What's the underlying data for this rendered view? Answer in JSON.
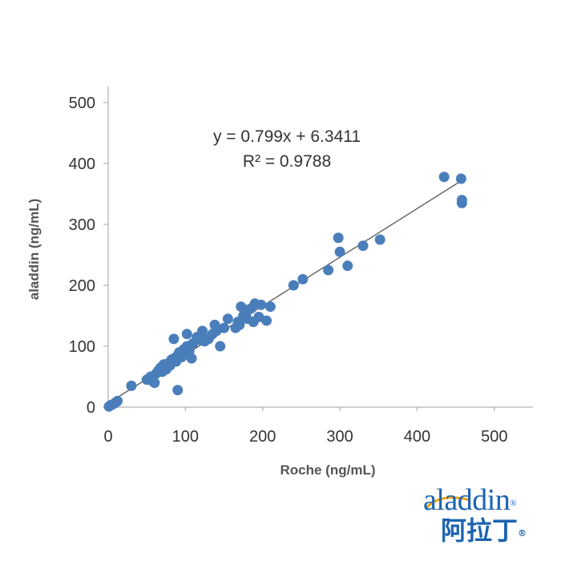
{
  "chart_data": {
    "type": "scatter",
    "xlabel": "Roche (ng/mL)",
    "ylabel": "aladdin (ng/mL)",
    "xlim": [
      0,
      550
    ],
    "ylim": [
      0,
      500
    ],
    "xticks": [
      "0",
      "100",
      "200",
      "300",
      "400",
      "500"
    ],
    "yticks": [
      "0",
      "100",
      "200",
      "300",
      "400",
      "500"
    ],
    "grid": false,
    "legend": "none",
    "equation": "y = 0.799x + 6.3411",
    "r_squared": "R² = 0.9788",
    "trendline": {
      "slope": 0.799,
      "intercept": 6.3411,
      "x_range": [
        0,
        460
      ]
    },
    "marker_color": "#4a7ebb",
    "trendline_color": "#555555",
    "points": [
      [
        1,
        1
      ],
      [
        3,
        3
      ],
      [
        5,
        4
      ],
      [
        8,
        6
      ],
      [
        10,
        8
      ],
      [
        12,
        10
      ],
      [
        30,
        35
      ],
      [
        50,
        45
      ],
      [
        55,
        50
      ],
      [
        58,
        42
      ],
      [
        60,
        40
      ],
      [
        62,
        55
      ],
      [
        65,
        60
      ],
      [
        68,
        65
      ],
      [
        70,
        58
      ],
      [
        72,
        70
      ],
      [
        75,
        62
      ],
      [
        78,
        72
      ],
      [
        80,
        68
      ],
      [
        82,
        78
      ],
      [
        85,
        80
      ],
      [
        85,
        112
      ],
      [
        88,
        75
      ],
      [
        90,
        85
      ],
      [
        90,
        28
      ],
      [
        92,
        90
      ],
      [
        95,
        82
      ],
      [
        98,
        95
      ],
      [
        100,
        88
      ],
      [
        102,
        100
      ],
      [
        102,
        120
      ],
      [
        105,
        92
      ],
      [
        108,
        80
      ],
      [
        110,
        105
      ],
      [
        115,
        115
      ],
      [
        120,
        110
      ],
      [
        122,
        125
      ],
      [
        125,
        108
      ],
      [
        130,
        112
      ],
      [
        135,
        120
      ],
      [
        138,
        135
      ],
      [
        140,
        125
      ],
      [
        145,
        100
      ],
      [
        150,
        130
      ],
      [
        155,
        145
      ],
      [
        165,
        130
      ],
      [
        168,
        140
      ],
      [
        170,
        135
      ],
      [
        172,
        165
      ],
      [
        175,
        150
      ],
      [
        180,
        145
      ],
      [
        182,
        160
      ],
      [
        185,
        162
      ],
      [
        188,
        140
      ],
      [
        190,
        170
      ],
      [
        195,
        148
      ],
      [
        198,
        168
      ],
      [
        205,
        142
      ],
      [
        210,
        165
      ],
      [
        240,
        200
      ],
      [
        252,
        210
      ],
      [
        285,
        225
      ],
      [
        298,
        278
      ],
      [
        300,
        255
      ],
      [
        310,
        232
      ],
      [
        330,
        265
      ],
      [
        352,
        275
      ],
      [
        435,
        378
      ],
      [
        457,
        375
      ],
      [
        458,
        335
      ],
      [
        458,
        340
      ]
    ]
  },
  "logo": {
    "latin": "aladdin",
    "chinese": "阿拉丁",
    "registered": "®",
    "color": "#1c63b0"
  }
}
